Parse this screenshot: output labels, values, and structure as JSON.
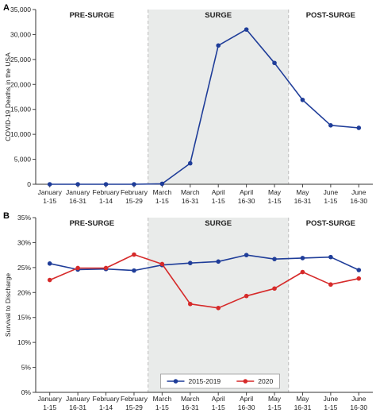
{
  "chart_data": [
    {
      "panel": "A",
      "type": "line",
      "ylabel": "COVID-19 Deaths in the USA",
      "ylim": [
        0,
        35000
      ],
      "yticks": [
        0,
        5000,
        10000,
        15000,
        20000,
        25000,
        30000,
        35000
      ],
      "ytick_labels": [
        "0",
        "5,000",
        "10,000",
        "15,000",
        "20,000",
        "25,000",
        "30,000",
        "35,000"
      ],
      "categories": [
        [
          "January",
          "1-15"
        ],
        [
          "January",
          "16-31"
        ],
        [
          "February",
          "1-14"
        ],
        [
          "February",
          "15-29"
        ],
        [
          "March",
          "1-15"
        ],
        [
          "March",
          "16-31"
        ],
        [
          "April",
          "1-15"
        ],
        [
          "April",
          "16-30"
        ],
        [
          "May",
          "1-15"
        ],
        [
          "May",
          "16-31"
        ],
        [
          "June",
          "1-15"
        ],
        [
          "June",
          "16-30"
        ]
      ],
      "periods": [
        {
          "label": "PRE-SURGE",
          "start": 0,
          "end": 3
        },
        {
          "label": "SURGE",
          "start": 4,
          "end": 8,
          "shaded": true
        },
        {
          "label": "POST-SURGE",
          "start": 9,
          "end": 11
        }
      ],
      "series": [
        {
          "color": "#1f3d99",
          "values": [
            0,
            0,
            0,
            0,
            100,
            4200,
            27800,
            31000,
            24300,
            16900,
            11800,
            11300
          ]
        }
      ]
    },
    {
      "panel": "B",
      "type": "line",
      "ylabel": "Survival to Discharge",
      "ylim": [
        0,
        35
      ],
      "yticks": [
        0,
        5,
        10,
        15,
        20,
        25,
        30,
        35
      ],
      "ytick_labels": [
        "0%",
        "5%",
        "10%",
        "15%",
        "20%",
        "25%",
        "30%",
        "35%"
      ],
      "categories": [
        [
          "January",
          "1-15"
        ],
        [
          "January",
          "16-31"
        ],
        [
          "February",
          "1-14"
        ],
        [
          "February",
          "15-29"
        ],
        [
          "March",
          "1-15"
        ],
        [
          "March",
          "16-31"
        ],
        [
          "April",
          "1-15"
        ],
        [
          "April",
          "16-30"
        ],
        [
          "May",
          "1-15"
        ],
        [
          "May",
          "16-31"
        ],
        [
          "June",
          "1-15"
        ],
        [
          "June",
          "16-30"
        ]
      ],
      "periods": [
        {
          "label": "PRE-SURGE",
          "start": 0,
          "end": 3
        },
        {
          "label": "SURGE",
          "start": 4,
          "end": 8,
          "shaded": true
        },
        {
          "label": "POST-SURGE",
          "start": 9,
          "end": 11
        }
      ],
      "legend_position": "bottom-center",
      "series": [
        {
          "name": "2015-2019",
          "color": "#1f3d99",
          "values": [
            25.8,
            24.6,
            24.7,
            24.4,
            25.5,
            25.9,
            26.2,
            27.5,
            26.7,
            26.9,
            27.1,
            24.5
          ]
        },
        {
          "name": "2020",
          "color": "#d62a2a",
          "values": [
            22.5,
            24.9,
            24.9,
            27.6,
            25.7,
            17.7,
            16.9,
            19.3,
            20.8,
            24.1,
            21.6,
            22.8
          ]
        }
      ]
    }
  ]
}
